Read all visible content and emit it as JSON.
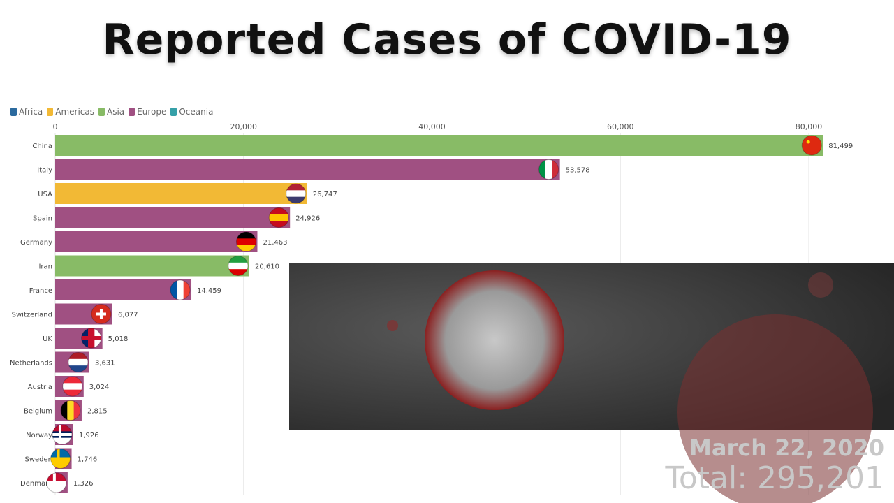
{
  "title": "Reported Cases of COVID-19",
  "date": "March 22, 2020",
  "total": "Total: 295,201",
  "chart_data": {
    "type": "bar",
    "orientation": "horizontal",
    "xlim": [
      0,
      80000
    ],
    "x_ticks": [
      "0",
      "20,000",
      "40,000",
      "60,000",
      "80,000"
    ],
    "x_tick_values": [
      0,
      20000,
      40000,
      60000,
      80000
    ],
    "grid": true,
    "legend_placement": "top-left",
    "legend": [
      {
        "name": "Africa",
        "color": "#2b6a9e"
      },
      {
        "name": "Americas",
        "color": "#f2b935"
      },
      {
        "name": "Asia",
        "color": "#88bb66"
      },
      {
        "name": "Europe",
        "color": "#a05082"
      },
      {
        "name": "Oceania",
        "color": "#35a0a8"
      }
    ],
    "categories": [
      "China",
      "Italy",
      "USA",
      "Spain",
      "Germany",
      "Iran",
      "France",
      "Switzerland",
      "UK",
      "Netherlands",
      "Austria",
      "Belgium",
      "Norway",
      "Sweden",
      "Denmark"
    ],
    "values": [
      81499,
      53578,
      26747,
      24926,
      21463,
      20610,
      14459,
      6077,
      5018,
      3631,
      3024,
      2815,
      1926,
      1746,
      1326
    ],
    "value_labels": [
      "81,499",
      "53,578",
      "26,747",
      "24,926",
      "21,463",
      "20,610",
      "14,459",
      "6,077",
      "5,018",
      "3,631",
      "3,024",
      "2,815",
      "1,926",
      "1,746",
      "1,326"
    ],
    "regions": [
      "Asia",
      "Europe",
      "Americas",
      "Europe",
      "Europe",
      "Asia",
      "Europe",
      "Europe",
      "Europe",
      "Europe",
      "Europe",
      "Europe",
      "Europe",
      "Europe",
      "Europe"
    ],
    "flags": [
      [
        "#de2910"
      ],
      [
        "#009246",
        "#ffffff",
        "#ce2b37"
      ],
      [
        "#b22234",
        "#ffffff",
        "#3c3b6e"
      ],
      [
        "#c60b1e",
        "#ffc400",
        "#c60b1e"
      ],
      [
        "#000000",
        "#dd0000",
        "#ffce00"
      ],
      [
        "#239f40",
        "#ffffff",
        "#da0000"
      ],
      [
        "#0055a4",
        "#ffffff",
        "#ef4135"
      ],
      [
        "#d52b1e"
      ],
      [
        "#012169",
        "#c8102e",
        "#ffffff"
      ],
      [
        "#ae1c28",
        "#ffffff",
        "#21468b"
      ],
      [
        "#ed2939",
        "#ffffff",
        "#ed2939"
      ],
      [
        "#000000",
        "#fdda24",
        "#ef3340"
      ],
      [
        "#ba0c2f",
        "#00205b",
        "#ffffff"
      ],
      [
        "#006aa7",
        "#fecc00"
      ],
      [
        "#c60c30",
        "#ffffff"
      ]
    ]
  }
}
